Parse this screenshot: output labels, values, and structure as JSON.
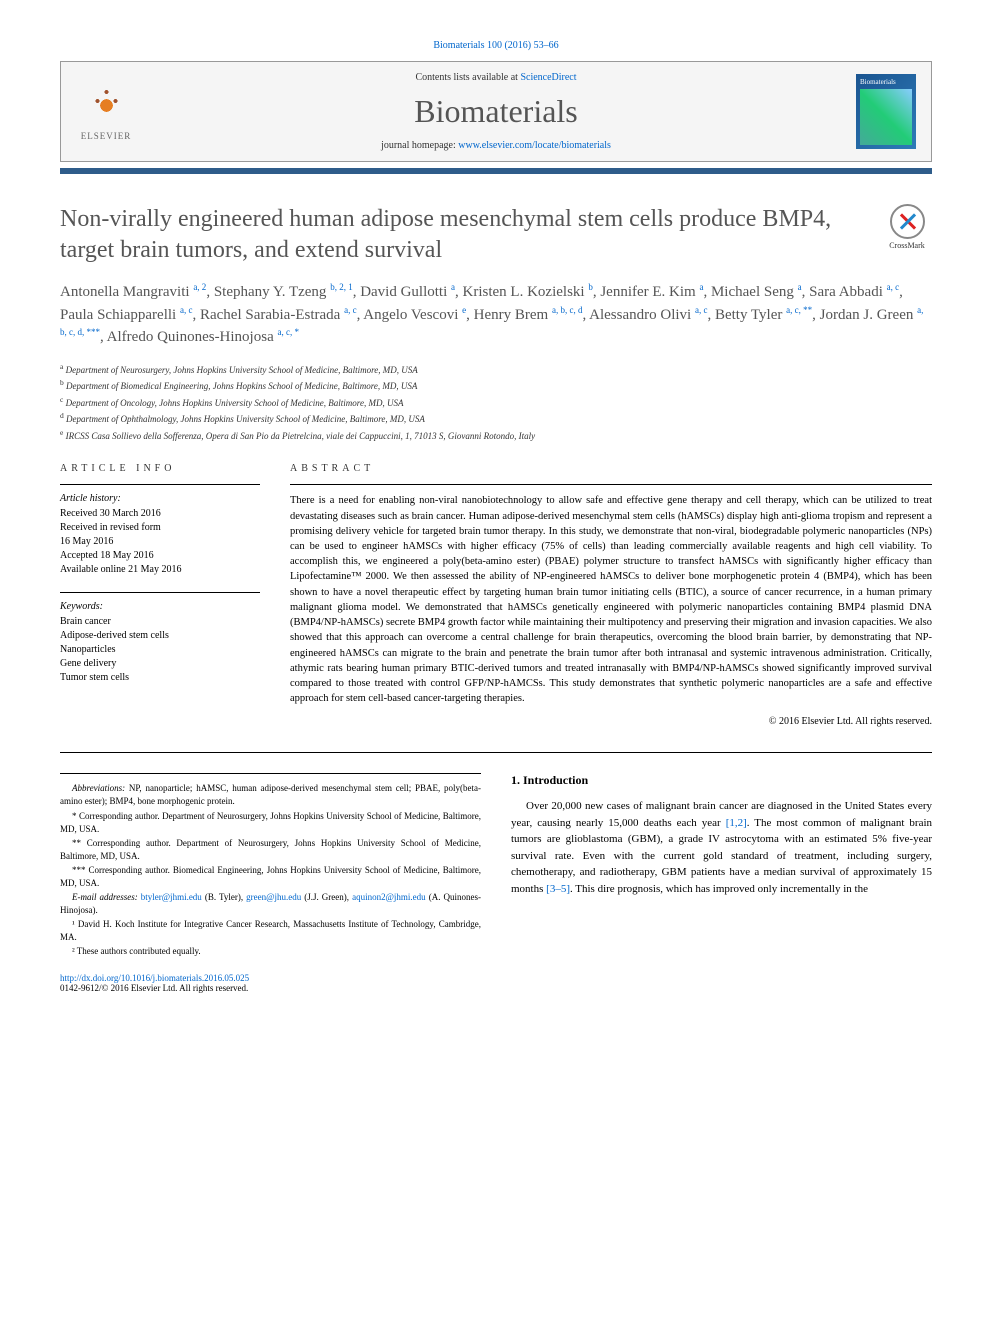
{
  "citation": "Biomaterials 100 (2016) 53–66",
  "header": {
    "contents_prefix": "Contents lists available at ",
    "contents_link": "ScienceDirect",
    "journal": "Biomaterials",
    "homepage_prefix": "journal homepage: ",
    "homepage_link": "www.elsevier.com/locate/biomaterials",
    "elsevier_label": "ELSEVIER",
    "cover_title": "Biomaterials"
  },
  "crossmark": "CrossMark",
  "title": "Non-virally engineered human adipose mesenchymal stem cells produce BMP4, target brain tumors, and extend survival",
  "authors_html": "Antonella Mangraviti <sup>a, 2</sup>, Stephany Y. Tzeng <sup>b, 2, 1</sup>, David Gullotti <sup>a</sup>, Kristen L. Kozielski <sup>b</sup>, Jennifer E. Kim <sup>a</sup>, Michael Seng <sup>a</sup>, Sara Abbadi <sup>a, c</sup>, Paula Schiapparelli <sup>a, c</sup>, Rachel Sarabia-Estrada <sup>a, c</sup>, Angelo Vescovi <sup>e</sup>, Henry Brem <sup>a, b, c, d</sup>, Alessandro Olivi <sup>a, c</sup>, Betty Tyler <sup>a, c, **</sup>, Jordan J. Green <sup>a, b, c, d, ***</sup>, Alfredo Quinones-Hinojosa <sup>a, c, *</sup>",
  "affiliations": [
    {
      "sup": "a",
      "text": "Department of Neurosurgery, Johns Hopkins University School of Medicine, Baltimore, MD, USA"
    },
    {
      "sup": "b",
      "text": "Department of Biomedical Engineering, Johns Hopkins School of Medicine, Baltimore, MD, USA"
    },
    {
      "sup": "c",
      "text": "Department of Oncology, Johns Hopkins University School of Medicine, Baltimore, MD, USA"
    },
    {
      "sup": "d",
      "text": "Department of Ophthalmology, Johns Hopkins University School of Medicine, Baltimore, MD, USA"
    },
    {
      "sup": "e",
      "text": "IRCSS Casa Sollievo della Sofferenza, Opera di San Pio da Pietrelcina, viale dei Cappuccini, 1, 71013 S, Giovanni Rotondo, Italy"
    }
  ],
  "info_head": "ARTICLE INFO",
  "abstract_head": "ABSTRACT",
  "history": {
    "label": "Article history:",
    "items": [
      "Received 30 March 2016",
      "Received in revised form",
      "16 May 2016",
      "Accepted 18 May 2016",
      "Available online 21 May 2016"
    ]
  },
  "keywords_label": "Keywords:",
  "keywords": [
    "Brain cancer",
    "Adipose-derived stem cells",
    "Nanoparticles",
    "Gene delivery",
    "Tumor stem cells"
  ],
  "abstract": "There is a need for enabling non-viral nanobiotechnology to allow safe and effective gene therapy and cell therapy, which can be utilized to treat devastating diseases such as brain cancer. Human adipose-derived mesenchymal stem cells (hAMSCs) display high anti-glioma tropism and represent a promising delivery vehicle for targeted brain tumor therapy. In this study, we demonstrate that non-viral, biodegradable polymeric nanoparticles (NPs) can be used to engineer hAMSCs with higher efficacy (75% of cells) than leading commercially available reagents and high cell viability. To accomplish this, we engineered a poly(beta-amino ester) (PBAE) polymer structure to transfect hAMSCs with significantly higher efficacy than Lipofectamine™ 2000. We then assessed the ability of NP-engineered hAMSCs to deliver bone morphogenetic protein 4 (BMP4), which has been shown to have a novel therapeutic effect by targeting human brain tumor initiating cells (BTIC), a source of cancer recurrence, in a human primary malignant glioma model. We demonstrated that hAMSCs genetically engineered with polymeric nanoparticles containing BMP4 plasmid DNA (BMP4/NP-hAMSCs) secrete BMP4 growth factor while maintaining their multipotency and preserving their migration and invasion capacities. We also showed that this approach can overcome a central challenge for brain therapeutics, overcoming the blood brain barrier, by demonstrating that NP-engineered hAMSCs can migrate to the brain and penetrate the brain tumor after both intranasal and systemic intravenous administration. Critically, athymic rats bearing human primary BTIC-derived tumors and treated intranasally with BMP4/NP-hAMSCs showed significantly improved survival compared to those treated with control GFP/NP-hAMCSs. This study demonstrates that synthetic polymeric nanoparticles are a safe and effective approach for stem cell-based cancer-targeting therapies.",
  "copyright": "© 2016 Elsevier Ltd. All rights reserved.",
  "footnotes": {
    "abbrev_label": "Abbreviations:",
    "abbrev_text": " NP, nanoparticle; hAMSC, human adipose-derived mesenchymal stem cell; PBAE, poly(beta-amino ester); BMP4, bone morphogenic protein.",
    "corr1": "* Corresponding author. Department of Neurosurgery, Johns Hopkins University School of Medicine, Baltimore, MD, USA.",
    "corr2": "** Corresponding author. Department of Neurosurgery, Johns Hopkins University School of Medicine, Baltimore, MD, USA.",
    "corr3": "*** Corresponding author. Biomedical Engineering, Johns Hopkins University School of Medicine, Baltimore, MD, USA.",
    "email_label": "E-mail addresses:",
    "email1": "btyler@jhmi.edu",
    "email1_who": " (B. Tyler), ",
    "email2": "green@jhu.edu",
    "email2_who": " (J.J. Green), ",
    "email3": "aquinon2@jhmi.edu",
    "email3_who": " (A. Quinones-Hinojosa).",
    "note1": "¹ David H. Koch Institute for Integrative Cancer Research, Massachusetts Institute of Technology, Cambridge, MA.",
    "note2": "² These authors contributed equally."
  },
  "intro": {
    "head": "1. Introduction",
    "p1_a": "Over 20,000 new cases of malignant brain cancer are diagnosed in the United States every year, causing nearly 15,000 deaths each year ",
    "p1_link1": "[1,2]",
    "p1_b": ". The most common of malignant brain tumors are glioblastoma (GBM), a grade IV astrocytoma with an estimated 5% five-year survival rate. Even with the current gold standard of treatment, including surgery, chemotherapy, and radiotherapy, GBM patients have a median survival of approximately 15 months ",
    "p1_link2": "[3–5]",
    "p1_c": ". This dire prognosis, which has improved only incrementally in the"
  },
  "doi": {
    "link": "http://dx.doi.org/10.1016/j.biomaterials.2016.05.025",
    "issn": "0142-9612/© 2016 Elsevier Ltd. All rights reserved."
  }
}
